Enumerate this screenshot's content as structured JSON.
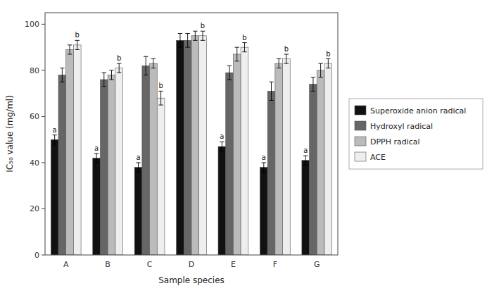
{
  "chart_data": {
    "type": "bar",
    "xlabel": "Sample species",
    "ylabel": "IC₅₀ value (mg/ml)",
    "categories": [
      "A",
      "B",
      "C",
      "D",
      "E",
      "F",
      "G"
    ],
    "series": [
      {
        "name": "Superoxide anion radical",
        "color": "#111111",
        "values": [
          50,
          42,
          38,
          93,
          47,
          38,
          41
        ],
        "errors": [
          2,
          2,
          2,
          3,
          2,
          2,
          2
        ],
        "annotations": [
          "a",
          "a",
          "a",
          null,
          "a",
          "a",
          "a"
        ]
      },
      {
        "name": "Hydroxyl radical",
        "color": "#666666",
        "values": [
          78,
          76,
          82,
          93,
          79,
          71,
          74
        ],
        "errors": [
          3,
          3,
          4,
          3,
          3,
          4,
          3
        ]
      },
      {
        "name": "DPPH radical",
        "color": "#bbbbbb",
        "values": [
          89,
          78,
          83,
          95,
          87,
          83,
          80
        ],
        "errors": [
          2,
          2,
          2,
          2,
          3,
          2,
          3
        ]
      },
      {
        "name": "ACE",
        "color": "#eeeeee",
        "values": [
          91,
          81,
          68,
          95,
          90,
          85,
          83
        ],
        "errors": [
          2,
          2,
          3,
          2,
          2,
          2,
          2
        ],
        "annotations": [
          "b",
          "b",
          "b",
          "b",
          "b",
          "b",
          "b"
        ]
      }
    ],
    "ylim": [
      0,
      105
    ],
    "yticks": [
      0,
      20,
      40,
      60,
      80,
      100
    ],
    "grid": false,
    "legend": "right"
  }
}
